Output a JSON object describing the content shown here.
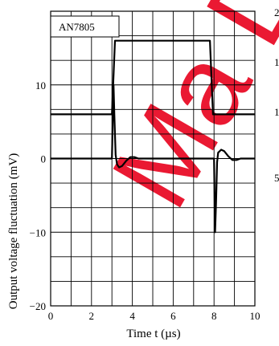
{
  "chart_data": {
    "type": "line",
    "title": "",
    "legend": {
      "entries": [
        "AN7805"
      ],
      "placement": "top-left"
    },
    "xlabel": "Time  t  (µs)",
    "ylabel": "Output voltage fluctuation  (mV)",
    "x_ticks": [
      "0",
      "2",
      "4",
      "6",
      "8",
      "10"
    ],
    "y_ticks": [
      "−20",
      "−10",
      "0",
      "10"
    ],
    "xlim": [
      0,
      10
    ],
    "ylim": [
      -20,
      20
    ],
    "grid": true,
    "secondary_y_tick_fragments": [
      "2",
      "1",
      "1",
      "5"
    ],
    "series": [
      {
        "role": "input-step",
        "x": [
          0,
          3.0,
          3.15,
          7.8,
          7.95,
          10
        ],
        "y": [
          6,
          6,
          16,
          16,
          6,
          6
        ]
      },
      {
        "role": "output-response",
        "x": [
          0,
          3.0,
          3.08,
          3.12,
          3.18,
          3.25,
          3.35,
          3.5,
          3.7,
          3.9,
          4.1,
          4.3,
          4.6,
          8.0,
          8.05,
          8.1,
          8.15,
          8.2,
          8.35,
          8.5,
          8.7,
          8.9,
          9.1,
          9.3,
          9.6,
          10
        ],
        "y": [
          0,
          0,
          10,
          6,
          0.5,
          -0.8,
          -1.2,
          -1.0,
          -0.3,
          0.2,
          0.2,
          0,
          0,
          0,
          -10,
          -6,
          -0.5,
          0.8,
          1.2,
          1.0,
          0.3,
          -0.2,
          -0.2,
          0,
          0,
          0
        ]
      }
    ]
  },
  "watermark": {
    "text": "Ma D",
    "color": "#e8001c"
  }
}
